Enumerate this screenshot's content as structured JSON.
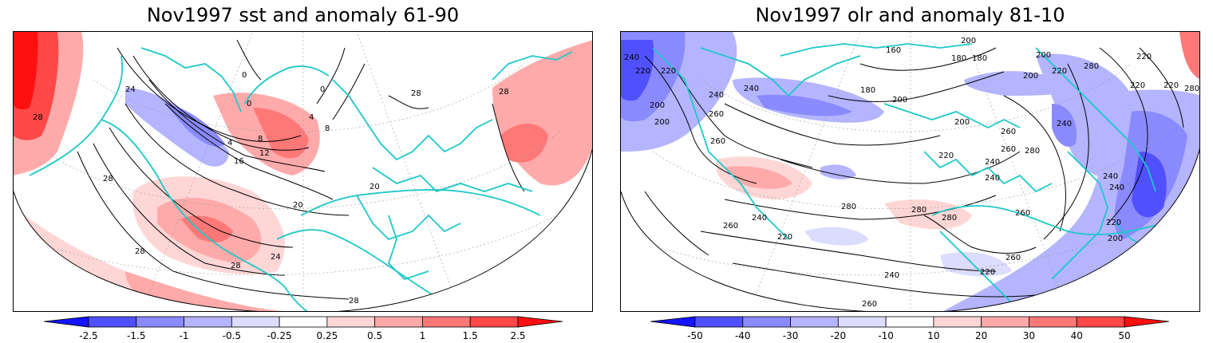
{
  "panels": [
    {
      "title": "Nov1997 sst and anomaly 61-90",
      "field": "sst",
      "colorbar": {
        "ticks": [
          "-2.5",
          "-1.5",
          "-1",
          "-0.5",
          "-0.25",
          "0.25",
          "0.5",
          "1",
          "1.5",
          "2.5"
        ],
        "colors": [
          "#1414ff",
          "#5050ff",
          "#8a8aff",
          "#b4b4ff",
          "#dcdcff",
          "#ffffff",
          "#ffd6d6",
          "#ffaaaa",
          "#ff7878",
          "#ff4848",
          "#ff1010"
        ]
      },
      "contour_labels": [
        "0",
        "0",
        "0",
        "4",
        "4",
        "8",
        "8",
        "12",
        "16",
        "20",
        "20",
        "24",
        "24",
        "28",
        "28",
        "28",
        "28",
        "28",
        "28",
        "28"
      ]
    },
    {
      "title": "Nov1997 olr and anomaly 81-10",
      "field": "olr",
      "colorbar": {
        "ticks": [
          "-50",
          "-40",
          "-30",
          "-20",
          "-10",
          "10",
          "20",
          "30",
          "40",
          "50"
        ],
        "colors": [
          "#1414ff",
          "#5050ff",
          "#8a8aff",
          "#b4b4ff",
          "#dcdcff",
          "#ffffff",
          "#ffd6d6",
          "#ffaaaa",
          "#ff7878",
          "#ff4848",
          "#ff1010"
        ]
      },
      "contour_labels": [
        "240",
        "220",
        "220",
        "200",
        "200",
        "240",
        "240",
        "260",
        "200",
        "180",
        "160",
        "200",
        "180",
        "180",
        "200",
        "220",
        "200",
        "280",
        "220",
        "220",
        "280",
        "220",
        "200",
        "260",
        "240",
        "240",
        "220",
        "240",
        "280",
        "260",
        "260",
        "240",
        "260",
        "280",
        "280",
        "280",
        "260",
        "220",
        "240",
        "240",
        "220",
        "200",
        "260",
        "220",
        "240",
        "260"
      ]
    }
  ],
  "colors": {
    "coastline": "#1ec8c8",
    "contour": "#000000",
    "frame": "#000000"
  }
}
